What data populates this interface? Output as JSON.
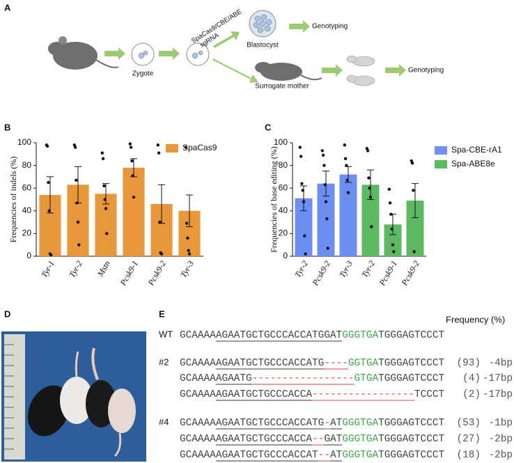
{
  "figure": {
    "panels": [
      "A",
      "B",
      "C",
      "D",
      "E"
    ]
  },
  "schematic": {
    "zygote": "Zygote",
    "reagents": "SpaCas9/CBE/ABE",
    "guide": "sgRNA",
    "blastocyst": "Blastocyst",
    "genotyping_1": "Genotyping",
    "surrogate": "Surrogate mother",
    "genotyping_2": "Genotyping"
  },
  "chart_data": [
    {
      "type": "bar",
      "ylabel": "Frequencies of indels (%)",
      "italic_categories": true,
      "categories": [
        "Tyr-1",
        "Tyr-2",
        "Mstn",
        "Pcsk9-1",
        "Pcsk9-2",
        "Tyr-3"
      ],
      "ylim": [
        0,
        100
      ],
      "yticks": [
        0,
        20,
        40,
        60,
        80,
        100
      ],
      "series": [
        {
          "name": "SpaCas9",
          "color": "#E8973A",
          "values": [
            54,
            63,
            55,
            78,
            46,
            40
          ],
          "errors": [
            16,
            16,
            9,
            8,
            17,
            14
          ],
          "points": [
            [
              98,
              97,
              65,
              40,
              2,
              1
            ],
            [
              98,
              96,
              67,
              47,
              30,
              10
            ],
            [
              91,
              86,
              62,
              50,
              42,
              20
            ],
            [
              99,
              96,
              84,
              71,
              52
            ],
            [
              98,
              91,
              30,
              3,
              2
            ],
            [
              96,
              29,
              16,
              5,
              2
            ]
          ]
        }
      ]
    },
    {
      "type": "bar",
      "ylabel": "Frequencies of base editing (%)",
      "italic_categories": true,
      "categories": [
        "Tyr-2",
        "Pcsk9-2",
        "Tyr-3",
        "Tyr-2",
        "Pcsk9-1",
        "Pcsk9-2"
      ],
      "ylim": [
        0,
        100
      ],
      "yticks": [
        0,
        20,
        40,
        60,
        80,
        100
      ],
      "series": [
        {
          "name": "Spa-CBE-rA1",
          "color": "#6D8EF2",
          "values": [
            51,
            64,
            72,
            null,
            null,
            null
          ],
          "errors": [
            11,
            11,
            7,
            null,
            null,
            null
          ],
          "points": [
            [
              96,
              88,
              64,
              58,
              48,
              18,
              2
            ],
            [
              93,
              89,
              80,
              63,
              48,
              33,
              7
            ],
            [
              98,
              86,
              80,
              67,
              56
            ],
            null,
            null,
            null
          ]
        },
        {
          "name": "Spa-ABE8e",
          "color": "#5DB862",
          "values": [
            null,
            null,
            null,
            63,
            28,
            49
          ],
          "errors": [
            null,
            null,
            null,
            13,
            9,
            15
          ],
          "points": [
            null,
            null,
            null,
            [
              95,
              93,
              69,
              60,
              52,
              26
            ],
            [
              59,
              47,
              37,
              24,
              10,
              4
            ],
            [
              84,
              82,
              58,
              4
            ]
          ]
        }
      ]
    }
  ],
  "alignment": {
    "header": "Frequency (%)",
    "groups": [
      {
        "label": "WT",
        "rows": [
          {
            "segments": [
              {
                "text": "GCAAAA",
                "style": "n"
              },
              {
                "text": "AGAATGCTGCCCACCATGGAT",
                "style": "u"
              },
              {
                "text": "GGGTGA",
                "style": "g"
              },
              {
                "text": "TGGGAGTCCCT",
                "style": "n"
              }
            ]
          }
        ]
      },
      {
        "label": "#2",
        "rows": [
          {
            "segments": [
              {
                "text": "GCAAAA",
                "style": "n"
              },
              {
                "text": "AGAATGCTGCCCACCATG",
                "style": "u"
              },
              {
                "text": "----",
                "style": "d"
              },
              {
                "text": "GGTGA",
                "style": "g"
              },
              {
                "text": "TGGGAGTCCCT",
                "style": "n"
              }
            ],
            "frequency": "(93)",
            "change": "-4bp"
          },
          {
            "segments": [
              {
                "text": "GCAAAA",
                "style": "n"
              },
              {
                "text": "AGAATG",
                "style": "u"
              },
              {
                "text": "-----------------",
                "style": "d"
              },
              {
                "text": "GTGA",
                "style": "g"
              },
              {
                "text": "TGGGAGTCCCT",
                "style": "n"
              }
            ],
            "frequency": "(4)",
            "change": "-17bp"
          },
          {
            "segments": [
              {
                "text": "GCAAAA",
                "style": "n"
              },
              {
                "text": "AGAATGCTGCCCACCA",
                "style": "u"
              },
              {
                "text": "-----------------",
                "style": "d"
              },
              {
                "text": "TCCCT",
                "style": "n"
              }
            ],
            "frequency": "(2)",
            "change": "-17bp"
          }
        ]
      },
      {
        "label": "#4",
        "rows": [
          {
            "segments": [
              {
                "text": "GCAAAA",
                "style": "n"
              },
              {
                "text": "AGAATGCTGCCCACCATG",
                "style": "u"
              },
              {
                "text": "-",
                "style": "d"
              },
              {
                "text": "AT",
                "style": "u"
              },
              {
                "text": "GGGTGA",
                "style": "g"
              },
              {
                "text": "TGGGAGTCCCT",
                "style": "n"
              }
            ],
            "frequency": "(53)",
            "change": "-1bp"
          },
          {
            "segments": [
              {
                "text": "GCAAAA",
                "style": "n"
              },
              {
                "text": "AGAATGCTGCCCACCA",
                "style": "u"
              },
              {
                "text": "--",
                "style": "d"
              },
              {
                "text": "GAT",
                "style": "u"
              },
              {
                "text": "GGGTGA",
                "style": "g"
              },
              {
                "text": "TGGGAGTCCCT",
                "style": "n"
              }
            ],
            "frequency": "(27)",
            "change": "-2bp"
          },
          {
            "segments": [
              {
                "text": "GCAAAA",
                "style": "n"
              },
              {
                "text": "AGAATGCTGCCCACCAT",
                "style": "u"
              },
              {
                "text": "--",
                "style": "d"
              },
              {
                "text": "AT",
                "style": "u"
              },
              {
                "text": "GGGTGA",
                "style": "g"
              },
              {
                "text": "TGGGAGTCCCT",
                "style": "n"
              }
            ],
            "frequency": "(18)",
            "change": "-2bp"
          }
        ]
      }
    ]
  }
}
